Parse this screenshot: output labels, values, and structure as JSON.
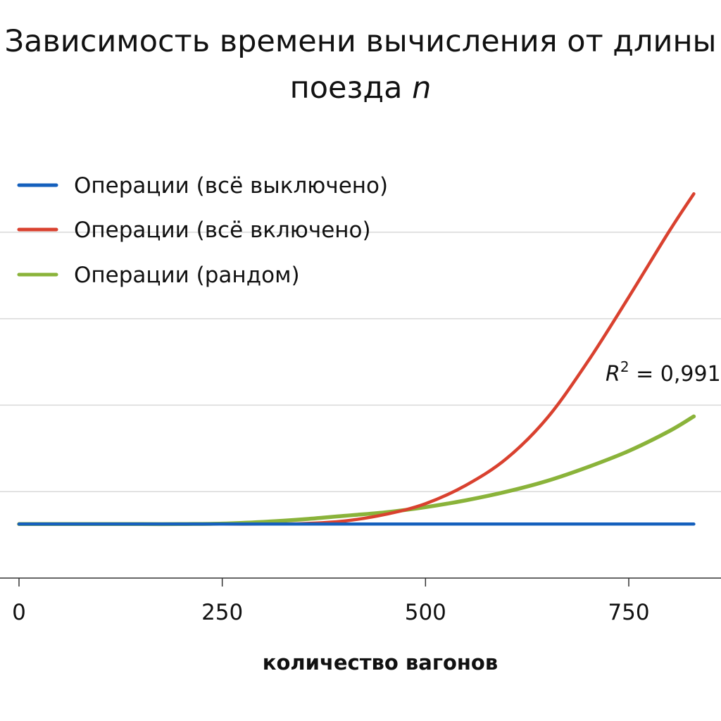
{
  "chart_data": {
    "type": "line",
    "title_line1": "Зависимость времени вычисления от длины",
    "title_line2_prefix": "поезда ",
    "title_line2_var": "n",
    "xlabel": "количество вагонов",
    "ylabel": "",
    "xlim": [
      -25,
      860
    ],
    "ylim": [
      0,
      100
    ],
    "x_ticks": [
      0,
      250,
      500,
      750
    ],
    "x_tick_labels": [
      "0",
      "250",
      "500",
      "750"
    ],
    "y_gridlines": [
      20,
      40,
      60,
      80
    ],
    "grid": true,
    "legend_position": "top-left",
    "x": [
      0,
      50,
      100,
      150,
      200,
      250,
      300,
      350,
      400,
      450,
      500,
      550,
      600,
      650,
      700,
      750,
      800,
      830
    ],
    "series": [
      {
        "name": "Операции (всё выключено)",
        "color": "#1560bd",
        "values": [
          12.5,
          12.5,
          12.5,
          12.5,
          12.5,
          12.5,
          12.5,
          12.5,
          12.5,
          12.5,
          12.5,
          12.5,
          12.5,
          12.5,
          12.5,
          12.5,
          12.5,
          12.5
        ]
      },
      {
        "name": "Операции (всё включено)",
        "color": "#d9412f",
        "values": [
          12.5,
          12.5,
          12.5,
          12.5,
          12.5,
          12.5,
          12.5,
          12.6,
          13.2,
          14.7,
          17.2,
          21.5,
          27.7,
          37.1,
          50.2,
          65.0,
          80.3,
          88.9
        ]
      },
      {
        "name": "Операции (рандом)",
        "color": "#8ab33a",
        "values": [
          12.5,
          12.5,
          12.5,
          12.5,
          12.5,
          12.6,
          13.0,
          13.6,
          14.4,
          15.2,
          16.4,
          18.0,
          20.0,
          22.5,
          25.7,
          29.4,
          34.0,
          37.4
        ]
      }
    ],
    "annotation": {
      "text_r": "R",
      "text_sup": "2",
      "text_rest": " = 0,991"
    }
  }
}
